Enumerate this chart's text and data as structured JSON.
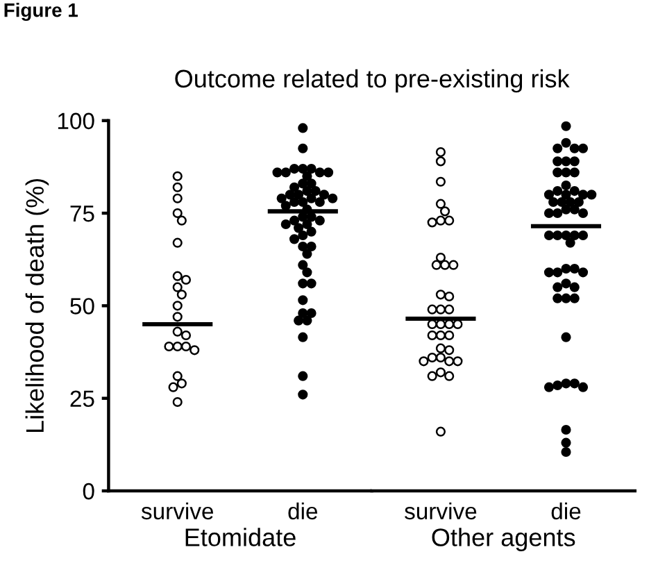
{
  "chart_data": [
    {
      "type": "scatter",
      "title": "Outcome related to pre-existing risk",
      "ylabel": "Likelihood of death (%)",
      "xlabel": "Etomidate",
      "categories": [
        "survive",
        "die"
      ],
      "ylim": [
        0,
        100
      ],
      "yticks": [
        0,
        25,
        50,
        75,
        100
      ],
      "marker": "circle",
      "annotations": [
        "Figure 1"
      ],
      "series": [
        {
          "color": "#ffffff",
          "x": [
            "survive",
            "survive",
            "survive",
            "survive",
            "survive",
            "survive",
            "survive",
            "survive",
            "survive",
            "survive",
            "survive",
            "survive",
            "survive",
            "survive",
            "survive",
            "survive",
            "survive",
            "survive",
            "survive",
            "survive",
            "survive",
            "survive"
          ],
          "values": [
            85,
            82,
            79,
            75,
            73,
            67,
            58,
            57,
            55,
            53,
            50,
            47,
            43,
            42,
            39,
            39,
            39,
            38,
            31,
            29,
            28,
            24
          ]
        },
        {
          "color": "#000000",
          "x": [
            "die",
            "die",
            "die",
            "die",
            "die",
            "die",
            "die",
            "die",
            "die",
            "die",
            "die",
            "die",
            "die",
            "die",
            "die",
            "die",
            "die",
            "die",
            "die",
            "die",
            "die",
            "die",
            "die",
            "die",
            "die",
            "die",
            "die",
            "die",
            "die",
            "die",
            "die",
            "die",
            "die",
            "die",
            "die",
            "die",
            "die",
            "die",
            "die",
            "die",
            "die",
            "die",
            "die",
            "die",
            "die",
            "die",
            "die",
            "die",
            "die",
            "die",
            "die"
          ],
          "values": [
            98,
            92.5,
            87,
            87,
            87,
            86,
            86,
            86,
            86,
            85,
            83,
            83,
            82,
            81,
            81,
            80,
            80,
            80,
            79,
            79,
            79,
            78,
            78,
            78,
            77,
            76,
            74,
            74,
            73,
            73,
            72,
            72,
            71,
            70,
            69,
            68,
            66,
            66,
            64,
            61,
            59,
            56,
            56,
            51.5,
            48,
            48,
            46,
            46,
            41.5,
            31,
            26
          ]
        }
      ],
      "ref_lines": [
        {
          "axis": "y",
          "value": 45,
          "color": "#000000"
        },
        {
          "axis": "y",
          "value": 75.5,
          "color": "#000000"
        }
      ],
      "grid": false,
      "legend": false
    },
    {
      "type": "scatter",
      "xlabel": "Other agents",
      "categories": [
        "survive",
        "die"
      ],
      "ylim": [
        0,
        100
      ],
      "tick_labels": "x",
      "marker": "circle",
      "series": [
        {
          "color": "#ffffff",
          "x": [
            "survive",
            "survive",
            "survive",
            "survive",
            "survive",
            "survive",
            "survive",
            "survive",
            "survive",
            "survive",
            "survive",
            "survive",
            "survive",
            "survive",
            "survive",
            "survive",
            "survive",
            "survive",
            "survive",
            "survive",
            "survive",
            "survive",
            "survive",
            "survive",
            "survive",
            "survive",
            "survive",
            "survive",
            "survive",
            "survive",
            "survive",
            "survive",
            "survive",
            "survive",
            "survive"
          ],
          "values": [
            91.5,
            89,
            83.5,
            77.5,
            75.5,
            73,
            73,
            72.5,
            63,
            61,
            61,
            61,
            53,
            52.5,
            49,
            49,
            49,
            45,
            45,
            45,
            45,
            42,
            42,
            42,
            38.5,
            38,
            36,
            36,
            35,
            35,
            35,
            32,
            31,
            31,
            16
          ]
        },
        {
          "color": "#000000",
          "x": [
            "die",
            "die",
            "die",
            "die",
            "die",
            "die",
            "die",
            "die",
            "die",
            "die",
            "die",
            "die",
            "die",
            "die",
            "die",
            "die",
            "die",
            "die",
            "die",
            "die",
            "die",
            "die",
            "die",
            "die",
            "die",
            "die",
            "die",
            "die",
            "die",
            "die",
            "die",
            "die",
            "die",
            "die",
            "die",
            "die",
            "die",
            "die",
            "die",
            "die",
            "die",
            "die",
            "die",
            "die",
            "die",
            "die",
            "die",
            "die",
            "die",
            "die",
            "die",
            "die",
            "die"
          ],
          "values": [
            98.5,
            94,
            92.5,
            92.5,
            92.5,
            89,
            89,
            89,
            86,
            86,
            86,
            82.5,
            81,
            81,
            80,
            80,
            80,
            80,
            78,
            78,
            78,
            78,
            76,
            76,
            75,
            75,
            75,
            69,
            69,
            69,
            69,
            69,
            67,
            60,
            60,
            59,
            59,
            59,
            56,
            55,
            55,
            52,
            52,
            52,
            41.5,
            29,
            28.5,
            28,
            28,
            29,
            16.5,
            13,
            10.5
          ]
        }
      ],
      "ref_lines": [
        {
          "axis": "y",
          "value": 46.5,
          "color": "#000000"
        },
        {
          "axis": "y",
          "value": 71.5,
          "color": "#000000"
        }
      ],
      "grid": false,
      "legend": false
    }
  ]
}
